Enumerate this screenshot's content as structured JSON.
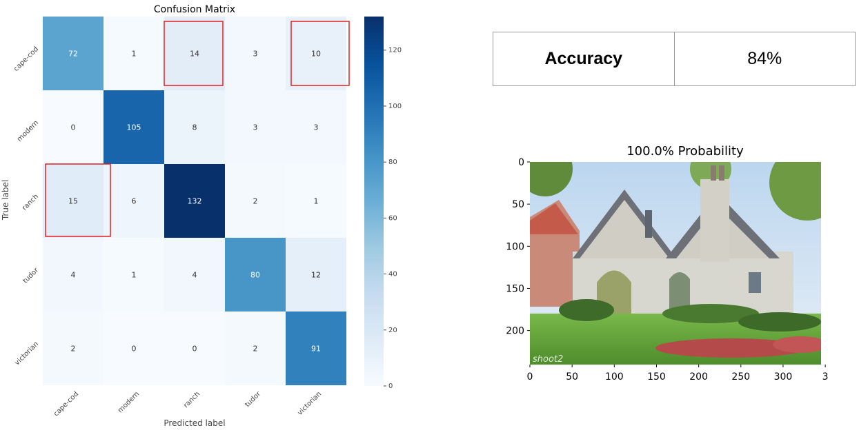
{
  "chart_data": [
    {
      "type": "heatmap",
      "title": "Confusion Matrix",
      "xlabel": "Predicted label",
      "ylabel": "True label",
      "x_categories": [
        "cape-cod",
        "modern",
        "ranch",
        "tudor",
        "victorian"
      ],
      "y_categories": [
        "cape-cod",
        "modern",
        "ranch",
        "tudor",
        "victorian"
      ],
      "values": [
        [
          72,
          1,
          14,
          3,
          10
        ],
        [
          0,
          105,
          8,
          3,
          3
        ],
        [
          15,
          6,
          132,
          2,
          1
        ],
        [
          4,
          1,
          4,
          80,
          12
        ],
        [
          2,
          0,
          0,
          2,
          91
        ]
      ],
      "colormap": "Blues",
      "colorbar_range": [
        0,
        132
      ],
      "colorbar_ticks": [
        0,
        20,
        40,
        60,
        80,
        100,
        120
      ],
      "highlighted_cells": [
        [
          0,
          2
        ],
        [
          0,
          4
        ],
        [
          2,
          0
        ]
      ],
      "highlight_color": "#e02020"
    },
    {
      "type": "image",
      "title": "100.0% Probability",
      "x_ticks": [
        "0",
        "50",
        "100",
        "150",
        "200",
        "250",
        "300",
        "3"
      ],
      "y_ticks": [
        "0",
        "50",
        "100",
        "150",
        "200"
      ],
      "image_description_icon": "house-photo",
      "watermark_text": "shoot2"
    }
  ],
  "metrics_table": {
    "label": "Accuracy",
    "value": "84%"
  }
}
